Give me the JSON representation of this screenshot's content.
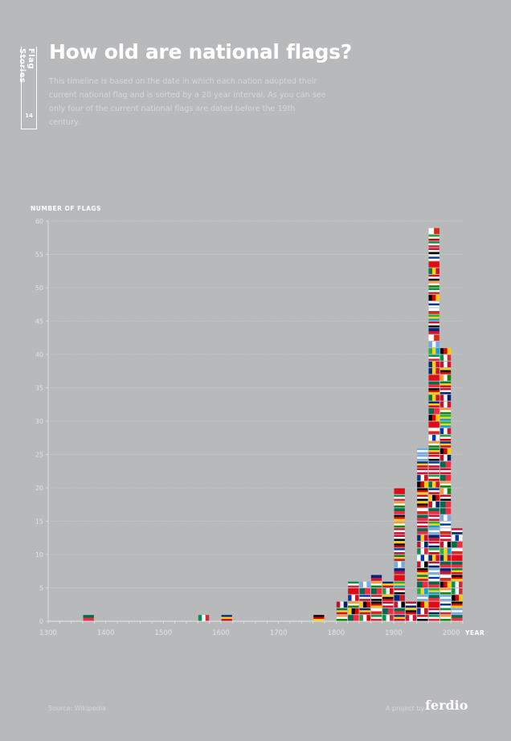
{
  "header": {
    "series_label": "Flag Stories",
    "issue_number": "14",
    "title": "How old are national flags?",
    "description": "This timeline is based on the date in which each nation adopted their current national flag and is sorted by a 20 year interval. As you can see only four of the current national flags are dated before the 19th century."
  },
  "chart_data": {
    "type": "bar",
    "subtype": "stacked flag icons (one icon per flag)",
    "ylabel": "NUMBER OF FLAGS",
    "xlabel": "YEAR",
    "xlim": [
      1300,
      2020
    ],
    "ylim": [
      0,
      60
    ],
    "xticks": [
      1300,
      1400,
      1500,
      1600,
      1700,
      1800,
      1900,
      2000
    ],
    "yticks": [
      0,
      5,
      10,
      15,
      20,
      25,
      30,
      35,
      40,
      45,
      50,
      55,
      60
    ],
    "grid": "horizontal dotted",
    "interval_years": 20,
    "bins": [
      1360,
      1560,
      1600,
      1760,
      1800,
      1820,
      1840,
      1860,
      1880,
      1900,
      1920,
      1940,
      1960,
      1980,
      2000
    ],
    "values": [
      1,
      1,
      1,
      1,
      3,
      6,
      6,
      7,
      6,
      20,
      3,
      26,
      59,
      41,
      14
    ]
  },
  "footer": {
    "source": "Source: Wikipedia",
    "project_by": "A project by",
    "logo": "ferdio"
  },
  "colors": {
    "background": "#b8b9bb",
    "text": "#ffffff"
  }
}
